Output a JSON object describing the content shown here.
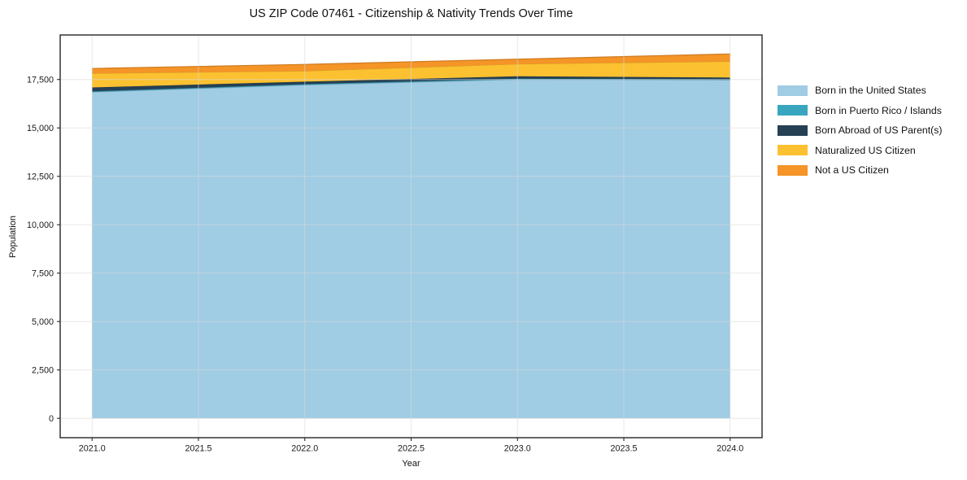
{
  "chart_data": {
    "type": "area",
    "stacked": true,
    "title": "US ZIP Code 07461 - Citizenship & Nativity Trends Over Time",
    "xlabel": "Year",
    "ylabel": "Population",
    "x": [
      2021,
      2022,
      2023,
      2024
    ],
    "series": [
      {
        "name": "Born in the United States",
        "color": "#A0CCE4",
        "values": [
          16850,
          17220,
          17500,
          17470
        ]
      },
      {
        "name": "Born in Puerto Rico / Islands",
        "color": "#39A6C0",
        "values": [
          40,
          40,
          40,
          40
        ]
      },
      {
        "name": "Born Abroad of US Parent(s)",
        "color": "#264054",
        "values": [
          200,
          130,
          130,
          90
        ]
      },
      {
        "name": "Naturalized US Citizen",
        "color": "#FCC130",
        "values": [
          730,
          550,
          630,
          840
        ]
      },
      {
        "name": "Not a US Citizen",
        "color": "#F59427",
        "values": [
          250,
          340,
          250,
          380
        ]
      }
    ],
    "xlim": [
      2020.85,
      2024.15
    ],
    "ylim": [
      -1000,
      19800
    ],
    "x_ticks": [
      {
        "v": 2021.0,
        "label": "2021.0"
      },
      {
        "v": 2021.5,
        "label": "2021.5"
      },
      {
        "v": 2022.0,
        "label": "2022.0"
      },
      {
        "v": 2022.5,
        "label": "2022.5"
      },
      {
        "v": 2023.0,
        "label": "2023.0"
      },
      {
        "v": 2023.5,
        "label": "2023.5"
      },
      {
        "v": 2024.0,
        "label": "2024.0"
      }
    ],
    "y_ticks": [
      {
        "v": 0,
        "label": "0"
      },
      {
        "v": 2500,
        "label": "2,500"
      },
      {
        "v": 5000,
        "label": "5,000"
      },
      {
        "v": 7500,
        "label": "7,500"
      },
      {
        "v": 10000,
        "label": "10,000"
      },
      {
        "v": 12500,
        "label": "12,500"
      },
      {
        "v": 15000,
        "label": "15,000"
      },
      {
        "v": 17500,
        "label": "17,500"
      }
    ],
    "grid": true,
    "legend_position": "right"
  }
}
